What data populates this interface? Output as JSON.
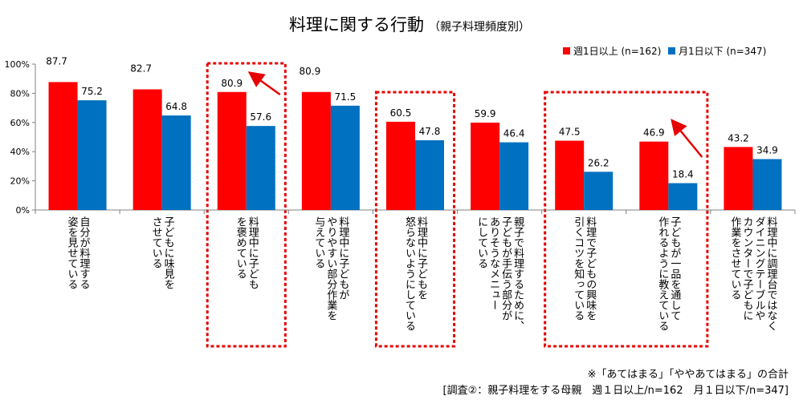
{
  "chart_data": {
    "type": "bar",
    "title": "料理に関する行動",
    "subtitle": "（親子料理頻度別）",
    "ylim": [
      0,
      100
    ],
    "yticks": [
      "0%",
      "20%",
      "40%",
      "60%",
      "80%",
      "100%"
    ],
    "categories": [
      [
        "自分が料理する",
        "姿を見せている"
      ],
      [
        "子どもに味見を",
        "させている"
      ],
      [
        "料理中に子ども",
        "を褒めている"
      ],
      [
        "料理中に子どもが",
        "やりやすい部分作業を",
        "与えている"
      ],
      [
        "料理中に子どもを",
        "怒らないようにしている"
      ],
      [
        "親子で料理するために、",
        "子どもが手伝う部分が",
        "ありそうなメニュー",
        "にしている"
      ],
      [
        "料理で子どもの興味を",
        "引くコツを知っている"
      ],
      [
        "子どもが一品を通して",
        "作れるように教えている"
      ],
      [
        "料理中に調理台ではなく",
        "ダイニングテーブルや",
        "カウンターで子どもに",
        "作業をさせている"
      ]
    ],
    "series": [
      {
        "name": "週1日以上 (n=162)",
        "color": "#ff0000",
        "values": [
          87.7,
          82.7,
          80.9,
          80.9,
          60.5,
          59.9,
          47.5,
          46.9,
          43.2
        ],
        "labels": [
          "87.7",
          "82.7",
          "80.9",
          "80.9",
          "60.5",
          "59.9",
          "47.5",
          "46.9",
          "43.2"
        ]
      },
      {
        "name": "月1日以下 (n=347)",
        "color": "#0070c0",
        "values": [
          75.2,
          64.8,
          57.6,
          71.5,
          47.8,
          46.4,
          26.2,
          18.4,
          34.9
        ],
        "labels": [
          "75.2",
          "64.8",
          "57.6",
          "71.5",
          "47.8",
          "46.4",
          "26.2",
          "18.4",
          "34.9"
        ]
      }
    ],
    "highlight_color": "#e60000",
    "highlight_groups": [
      [
        2
      ],
      [
        4
      ],
      [
        6,
        7
      ]
    ],
    "arrow_categories": [
      2,
      7
    ]
  },
  "notes": {
    "note1": "※「あてはまる」「ややあてはまる」の合計",
    "note2": "[調査②：親子料理をする母親　週１日以上/n=162　月１日以下/n=347]"
  }
}
